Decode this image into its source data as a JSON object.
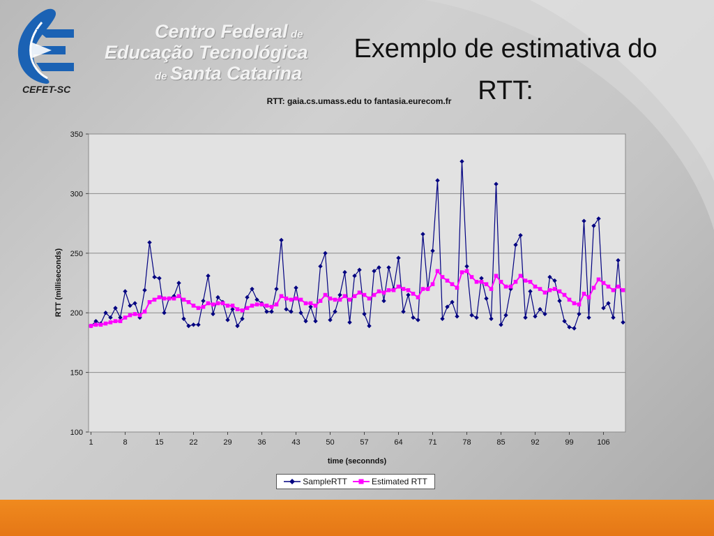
{
  "slide": {
    "title": "Exemplo de estimativa do RTT:"
  },
  "logo": {
    "label": "CEFET-SC",
    "institution": {
      "line1": "Centro Federal",
      "line1_suffix": "de",
      "line2": "Educação Tecnológica",
      "line3_prefix": "de",
      "line3": "Santa Catarina"
    }
  },
  "colors": {
    "sample": "#000080",
    "estimated": "#ff00ff",
    "plot_bg": "#e2e2e2",
    "footer": "#e97c18",
    "logo_blue": "#1b62b4"
  },
  "chart_data": {
    "type": "line",
    "title": "RTT: gaia.cs.umass.edu to fantasia.eurecom.fr",
    "xlabel": "time (seconnds)",
    "ylabel": "RTT (milliseconds)",
    "ylim": [
      100,
      350
    ],
    "yticks": [
      100,
      150,
      200,
      250,
      300,
      350
    ],
    "xticks": [
      "1",
      "8",
      "15",
      "22",
      "29",
      "36",
      "43",
      "50",
      "57",
      "64",
      "71",
      "78",
      "85",
      "92",
      "99",
      "106"
    ],
    "grid": "horizontal",
    "legend": "bottom",
    "x_start": 1,
    "series": [
      {
        "name": "SampleRTT",
        "marker": "diamond",
        "values": [
          189,
          193,
          191,
          200,
          196,
          204,
          196,
          218,
          206,
          208,
          196,
          219,
          259,
          230,
          229,
          200,
          212,
          214,
          225,
          195,
          189,
          190,
          190,
          210,
          231,
          199,
          213,
          209,
          194,
          203,
          189,
          195,
          213,
          220,
          211,
          208,
          201,
          201,
          220,
          261,
          203,
          201,
          221,
          200,
          193,
          205,
          193,
          239,
          250,
          194,
          201,
          215,
          234,
          192,
          231,
          236,
          199,
          189,
          235,
          238,
          210,
          238,
          220,
          246,
          201,
          215,
          196,
          194,
          266,
          220,
          252,
          311,
          195,
          205,
          209,
          197,
          327,
          239,
          198,
          196,
          229,
          212,
          195,
          308,
          190,
          198,
          220,
          257,
          265,
          196,
          218,
          197,
          203,
          199,
          230,
          227,
          210,
          193,
          188,
          187,
          199,
          277,
          196,
          273,
          279,
          204,
          208,
          196,
          244,
          192
        ]
      },
      {
        "name": "Estimated RTT",
        "marker": "square",
        "values": [
          189,
          190,
          190,
          191,
          192,
          193,
          193,
          196,
          198,
          199,
          198,
          201,
          209,
          211,
          213,
          212,
          212,
          212,
          214,
          211,
          209,
          206,
          204,
          205,
          208,
          207,
          208,
          208,
          206,
          206,
          203,
          202,
          204,
          206,
          207,
          207,
          206,
          205,
          207,
          214,
          212,
          211,
          212,
          211,
          208,
          208,
          206,
          210,
          215,
          212,
          211,
          211,
          214,
          211,
          214,
          217,
          215,
          212,
          215,
          218,
          217,
          219,
          219,
          222,
          220,
          219,
          216,
          213,
          220,
          220,
          224,
          235,
          230,
          227,
          224,
          221,
          234,
          235,
          230,
          226,
          226,
          224,
          220,
          231,
          226,
          222,
          222,
          226,
          231,
          227,
          226,
          222,
          220,
          217,
          219,
          220,
          218,
          215,
          211,
          208,
          207,
          216,
          213,
          221,
          228,
          225,
          222,
          219,
          222,
          219
        ]
      }
    ]
  }
}
